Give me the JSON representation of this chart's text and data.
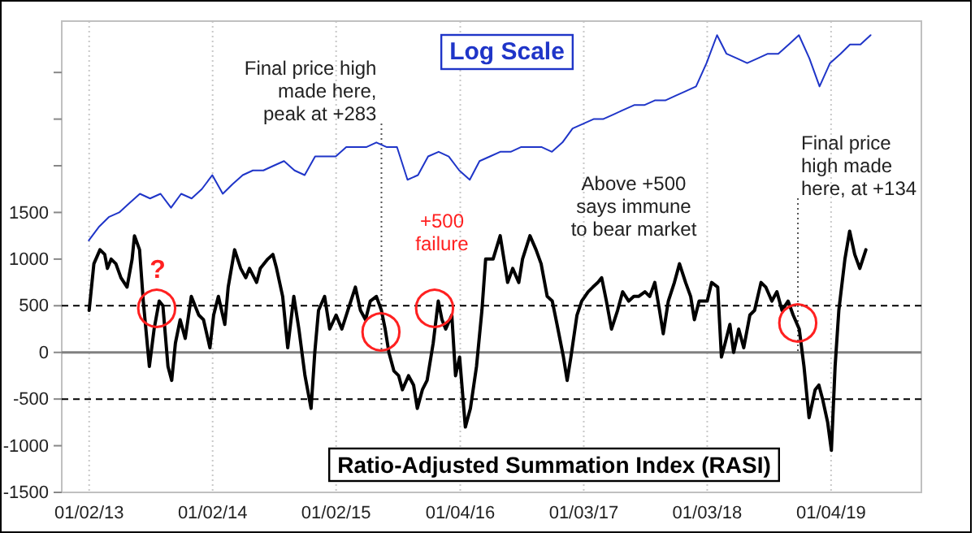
{
  "chart_data": {
    "type": "line",
    "xlim": [
      "2012-10-13",
      "2019-09-28"
    ],
    "xticks": [
      {
        "value": "2013-01-02",
        "label": "01/02/13"
      },
      {
        "value": "2014-01-02",
        "label": "01/02/14"
      },
      {
        "value": "2015-01-02",
        "label": "01/02/15"
      },
      {
        "value": "2016-01-04",
        "label": "01/04/16"
      },
      {
        "value": "2017-01-03",
        "label": "01/03/17"
      },
      {
        "value": "2018-01-03",
        "label": "01/03/18"
      },
      {
        "value": "2019-01-04",
        "label": "01/04/19"
      }
    ],
    "ylim": [
      -1500,
      3550
    ],
    "yticks": [
      -1500,
      -1000,
      -500,
      0,
      500,
      1000,
      1500,
      {
        "value": 2000,
        "label": null
      },
      {
        "value": 2500,
        "label": null
      },
      {
        "value": 3000,
        "label": null
      }
    ],
    "grid": "x",
    "legend": false,
    "series": [
      {
        "name": "Log Scale",
        "color": "#1f35c8",
        "x": [
          "2013-01",
          "2013-02",
          "2013-03",
          "2013-04",
          "2013-05",
          "2013-06",
          "2013-07",
          "2013-08",
          "2013-09",
          "2013-10",
          "2013-11",
          "2013-12",
          "2014-01",
          "2014-02",
          "2014-03",
          "2014-04",
          "2014-05",
          "2014-06",
          "2014-07",
          "2014-08",
          "2014-09",
          "2014-10",
          "2014-11",
          "2014-12",
          "2015-01",
          "2015-02",
          "2015-03",
          "2015-04",
          "2015-05",
          "2015-06",
          "2015-07",
          "2015-08",
          "2015-09",
          "2015-10",
          "2015-11",
          "2015-12",
          "2016-01",
          "2016-02",
          "2016-03",
          "2016-04",
          "2016-05",
          "2016-06",
          "2016-07",
          "2016-08",
          "2016-09",
          "2016-10",
          "2016-11",
          "2016-12",
          "2017-01",
          "2017-02",
          "2017-03",
          "2017-04",
          "2017-05",
          "2017-06",
          "2017-07",
          "2017-08",
          "2017-09",
          "2017-10",
          "2017-11",
          "2017-12",
          "2018-01",
          "2018-02",
          "2018-03",
          "2018-04",
          "2018-05",
          "2018-06",
          "2018-07",
          "2018-08",
          "2018-09",
          "2018-10",
          "2018-11",
          "2018-12",
          "2019-01",
          "2019-02",
          "2019-03",
          "2019-04",
          "2019-05"
        ],
        "values": [
          1200,
          1350,
          1450,
          1500,
          1600,
          1700,
          1650,
          1700,
          1550,
          1700,
          1650,
          1750,
          1900,
          1700,
          1800,
          1900,
          1950,
          1950,
          2000,
          2050,
          1950,
          1900,
          2100,
          2100,
          2100,
          2200,
          2200,
          2200,
          2250,
          2200,
          2200,
          1850,
          1900,
          2100,
          2150,
          2100,
          1950,
          1850,
          2050,
          2100,
          2150,
          2150,
          2200,
          2200,
          2200,
          2150,
          2250,
          2400,
          2450,
          2500,
          2500,
          2550,
          2600,
          2650,
          2650,
          2700,
          2700,
          2750,
          2800,
          2850,
          3100,
          3400,
          3200,
          3150,
          3100,
          3150,
          3200,
          3200,
          3300,
          3400,
          3150,
          2850,
          3100,
          3200,
          3300,
          3300,
          3400
        ]
      },
      {
        "name": "Ratio-Adjusted Summation Index (RASI)",
        "color": "#000000",
        "x": [
          "2013-01-02",
          "2013-01-16",
          "2013-02-03",
          "2013-02-17",
          "2013-02-25",
          "2013-03-08",
          "2013-03-22",
          "2013-04-06",
          "2013-04-24",
          "2013-05-09",
          "2013-05-16",
          "2013-05-31",
          "2013-06-11",
          "2013-06-29",
          "2013-07-13",
          "2013-07-28",
          "2013-08-08",
          "2013-08-23",
          "2013-09-03",
          "2013-09-14",
          "2013-09-28",
          "2013-10-13",
          "2013-10-31",
          "2013-11-22",
          "2013-12-06",
          "2013-12-25",
          "2014-01-05",
          "2014-01-19",
          "2014-02-07",
          "2014-02-17",
          "2014-03-08",
          "2014-03-26",
          "2014-04-10",
          "2014-04-21",
          "2014-05-12",
          "2014-05-23",
          "2014-06-14",
          "2014-06-29",
          "2014-07-10",
          "2014-07-28",
          "2014-08-12",
          "2014-08-30",
          "2014-09-14",
          "2014-10-02",
          "2014-10-20",
          "2014-10-31",
          "2014-11-11",
          "2014-11-29",
          "2014-12-14",
          "2015-01-02",
          "2015-01-19",
          "2015-02-10",
          "2015-02-28",
          "2015-03-15",
          "2015-03-30",
          "2015-04-13",
          "2015-05-01",
          "2015-05-16",
          "2015-05-27",
          "2015-06-07",
          "2015-06-22",
          "2015-07-06",
          "2015-07-17",
          "2015-08-04",
          "2015-08-19",
          "2015-08-30",
          "2015-09-14",
          "2015-09-28",
          "2015-10-16",
          "2015-10-31",
          "2015-11-11",
          "2015-11-22",
          "2015-12-10",
          "2015-12-21",
          "2016-01-02",
          "2016-01-19",
          "2016-02-03",
          "2016-02-21",
          "2016-03-08",
          "2016-03-19",
          "2016-04-10",
          "2016-05-01",
          "2016-05-23",
          "2016-06-07",
          "2016-06-25",
          "2016-07-06",
          "2016-07-28",
          "2016-08-15",
          "2016-08-30",
          "2016-09-17",
          "2016-10-02",
          "2016-10-16",
          "2016-11-04",
          "2016-11-15",
          "2016-11-26",
          "2016-12-14",
          "2016-12-28",
          "2017-01-16",
          "2017-01-30",
          "2017-02-14",
          "2017-02-25",
          "2017-03-11",
          "2017-03-26",
          "2017-04-13",
          "2017-04-28",
          "2017-05-16",
          "2017-05-31",
          "2017-06-14",
          "2017-07-03",
          "2017-07-17",
          "2017-08-01",
          "2017-08-15",
          "2017-08-26",
          "2017-09-10",
          "2017-09-28",
          "2017-10-13",
          "2017-10-31",
          "2017-11-15",
          "2017-11-26",
          "2017-12-10",
          "2018-01-03",
          "2018-01-16",
          "2018-02-03",
          "2018-02-14",
          "2018-02-25",
          "2018-03-11",
          "2018-03-22",
          "2018-04-06",
          "2018-04-21",
          "2018-05-09",
          "2018-05-23",
          "2018-06-11",
          "2018-06-25",
          "2018-07-13",
          "2018-07-28",
          "2018-08-12",
          "2018-08-30",
          "2018-09-14",
          "2018-10-02",
          "2018-10-16",
          "2018-10-31",
          "2018-11-18",
          "2018-11-29",
          "2018-12-10",
          "2018-12-25",
          "2019-01-05",
          "2019-01-16",
          "2019-01-27",
          "2019-02-14",
          "2019-02-28",
          "2019-03-15",
          "2019-03-30",
          "2019-04-17"
        ],
        "values": [
          450,
          950,
          1100,
          1050,
          900,
          1000,
          950,
          800,
          700,
          1000,
          1250,
          1100,
          550,
          -150,
          250,
          550,
          500,
          -150,
          -300,
          100,
          350,
          150,
          600,
          400,
          350,
          50,
          400,
          600,
          300,
          700,
          1100,
          900,
          800,
          900,
          750,
          900,
          1000,
          1050,
          900,
          600,
          50,
          600,
          250,
          -250,
          -600,
          0,
          450,
          600,
          250,
          400,
          250,
          500,
          700,
          450,
          350,
          550,
          600,
          450,
          250,
          0,
          -200,
          -250,
          -400,
          -250,
          -350,
          -600,
          -400,
          -300,
          100,
          550,
          350,
          250,
          400,
          -250,
          -50,
          -800,
          -600,
          -150,
          450,
          1000,
          1000,
          1250,
          750,
          900,
          750,
          1000,
          1250,
          1100,
          950,
          600,
          550,
          300,
          -50,
          -300,
          -50,
          400,
          550,
          650,
          700,
          750,
          800,
          550,
          250,
          450,
          650,
          550,
          600,
          600,
          650,
          600,
          750,
          450,
          200,
          550,
          750,
          950,
          750,
          600,
          350,
          550,
          550,
          750,
          700,
          -50,
          100,
          300,
          0,
          250,
          50,
          400,
          450,
          750,
          700,
          550,
          650,
          450,
          550,
          400,
          250,
          -150,
          -700,
          -400,
          -350,
          -500,
          -750,
          -1050,
          -150,
          450,
          1000,
          1300,
          1050,
          900,
          1100
        ]
      }
    ],
    "ref_lines": [
      {
        "axis": "y",
        "value": 500,
        "color": "#000000",
        "line_style": "dashed"
      },
      {
        "axis": "y",
        "value": -500,
        "color": "#000000",
        "line_style": "dashed"
      },
      {
        "axis": "y",
        "value": 0,
        "color": "#808080",
        "line_style": "solid"
      },
      {
        "axis": "x",
        "value": "2015-05-16",
        "label": "Final price high\nmade here,\npeak at +283",
        "color": "#555555",
        "line_style": "dotted"
      },
      {
        "axis": "x",
        "value": "2018-09-28",
        "label": "Final price\nhigh made\nhere, at +134",
        "color": "#555555",
        "line_style": "dotted"
      }
    ],
    "annotations": [
      "?",
      "+500\nfailure",
      "Above +500\nsays immune\nto bear market",
      {
        "text": "◯",
        "x": "2013-07-20",
        "y": 500
      },
      {
        "text": "◯",
        "x": "2015-05-16",
        "y": 250
      },
      {
        "text": "◯",
        "x": "2015-10-20",
        "y": 500
      },
      {
        "text": "◯",
        "x": "2018-09-28",
        "y": 350
      }
    ]
  }
}
